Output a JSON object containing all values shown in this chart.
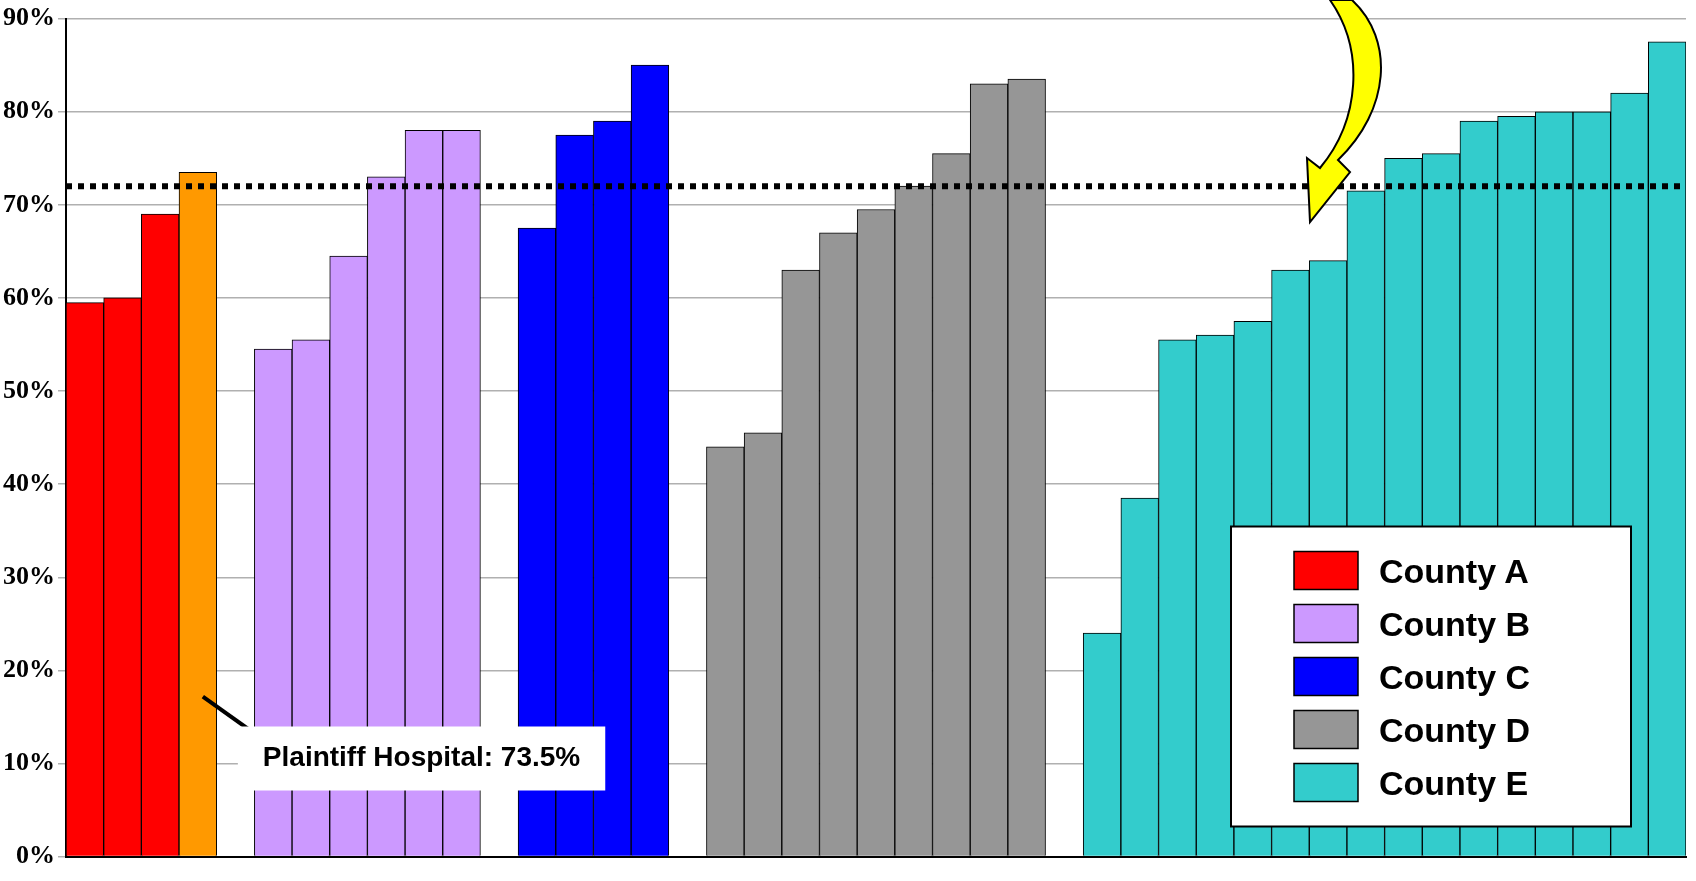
{
  "chart_data": {
    "type": "bar",
    "categories": [
      null,
      null,
      null,
      null,
      null,
      null,
      null,
      null,
      null,
      null,
      null,
      null,
      null,
      null,
      null,
      null,
      null,
      null,
      null,
      null,
      null,
      null,
      null,
      null,
      null,
      null,
      null,
      null,
      null,
      null,
      null,
      null,
      null,
      null,
      null,
      null,
      null,
      null,
      null,
      null,
      null,
      null,
      null
    ],
    "series": [
      {
        "name": "County A",
        "color": "#ff0000",
        "colors": [
          "#ff0000",
          "#ff0000",
          "#ff0000",
          "#ff9900",
          null,
          null,
          null,
          null,
          null,
          null,
          null,
          null,
          null,
          null,
          null,
          null,
          null,
          null,
          null,
          null,
          null,
          null,
          null,
          null,
          null,
          null,
          null,
          null,
          null,
          null,
          null,
          null,
          null,
          null,
          null,
          null,
          null,
          null,
          null,
          null,
          null,
          null,
          null
        ],
        "values": [
          59.5,
          60,
          69,
          73.5,
          null,
          null,
          null,
          null,
          null,
          null,
          null,
          null,
          null,
          null,
          null,
          null,
          null,
          null,
          null,
          null,
          null,
          null,
          null,
          null,
          null,
          null,
          null,
          null,
          null,
          null,
          null,
          null,
          null,
          null,
          null,
          null,
          null,
          null,
          null,
          null,
          null,
          null,
          null
        ]
      },
      {
        "name": "County B",
        "color": "#cc99ff",
        "values": [
          null,
          null,
          null,
          null,
          null,
          54.5,
          55.5,
          64.5,
          73,
          78,
          78,
          null,
          null,
          null,
          null,
          null,
          null,
          null,
          null,
          null,
          null,
          null,
          null,
          null,
          null,
          null,
          null,
          null,
          null,
          null,
          null,
          null,
          null,
          null,
          null,
          null,
          null,
          null,
          null,
          null,
          null,
          null,
          null
        ]
      },
      {
        "name": "County C",
        "color": "#0000ff",
        "values": [
          null,
          null,
          null,
          null,
          null,
          null,
          null,
          null,
          null,
          null,
          null,
          null,
          67.5,
          77.5,
          79,
          85,
          null,
          null,
          null,
          null,
          null,
          null,
          null,
          null,
          null,
          null,
          null,
          null,
          null,
          null,
          null,
          null,
          null,
          null,
          null,
          null,
          null,
          null,
          null,
          null,
          null,
          null,
          null
        ]
      },
      {
        "name": "County D",
        "color": "#969696",
        "values": [
          null,
          null,
          null,
          null,
          null,
          null,
          null,
          null,
          null,
          null,
          null,
          null,
          null,
          null,
          null,
          null,
          null,
          44,
          45.5,
          63,
          67,
          69.5,
          72,
          75.5,
          83,
          83.5,
          null,
          null,
          null,
          null,
          null,
          null,
          null,
          null,
          null,
          null,
          null,
          null,
          null,
          null,
          null,
          null,
          null
        ]
      },
      {
        "name": "County E",
        "color": "#33cccc",
        "values": [
          null,
          null,
          null,
          null,
          null,
          null,
          null,
          null,
          null,
          null,
          null,
          null,
          null,
          null,
          null,
          null,
          null,
          null,
          null,
          null,
          null,
          null,
          null,
          null,
          null,
          null,
          null,
          24,
          38.5,
          55.5,
          56,
          57.5,
          63,
          64,
          71.5,
          75,
          75.5,
          79,
          79.5,
          80,
          80,
          82,
          87.5
        ]
      }
    ],
    "ylim": [
      0,
      90
    ],
    "yticks": [
      {
        "value": 0,
        "label": "0%"
      },
      {
        "value": 10,
        "label": "10%"
      },
      {
        "value": 20,
        "label": "20%"
      },
      {
        "value": 30,
        "label": "30%"
      },
      {
        "value": 40,
        "label": "40%"
      },
      {
        "value": 50,
        "label": "50%"
      },
      {
        "value": 60,
        "label": "60%"
      },
      {
        "value": 70,
        "label": "70%"
      },
      {
        "value": 80,
        "label": "80%"
      },
      {
        "value": 90,
        "label": "90%"
      }
    ],
    "grid": "y",
    "legend": "bottom right",
    "ref_lines": [
      {
        "axis": "y",
        "value": 72,
        "line_style": "dotted",
        "color": "#000000"
      }
    ],
    "annotations": [
      "Plaintiff Hospital: 73.5%"
    ]
  }
}
